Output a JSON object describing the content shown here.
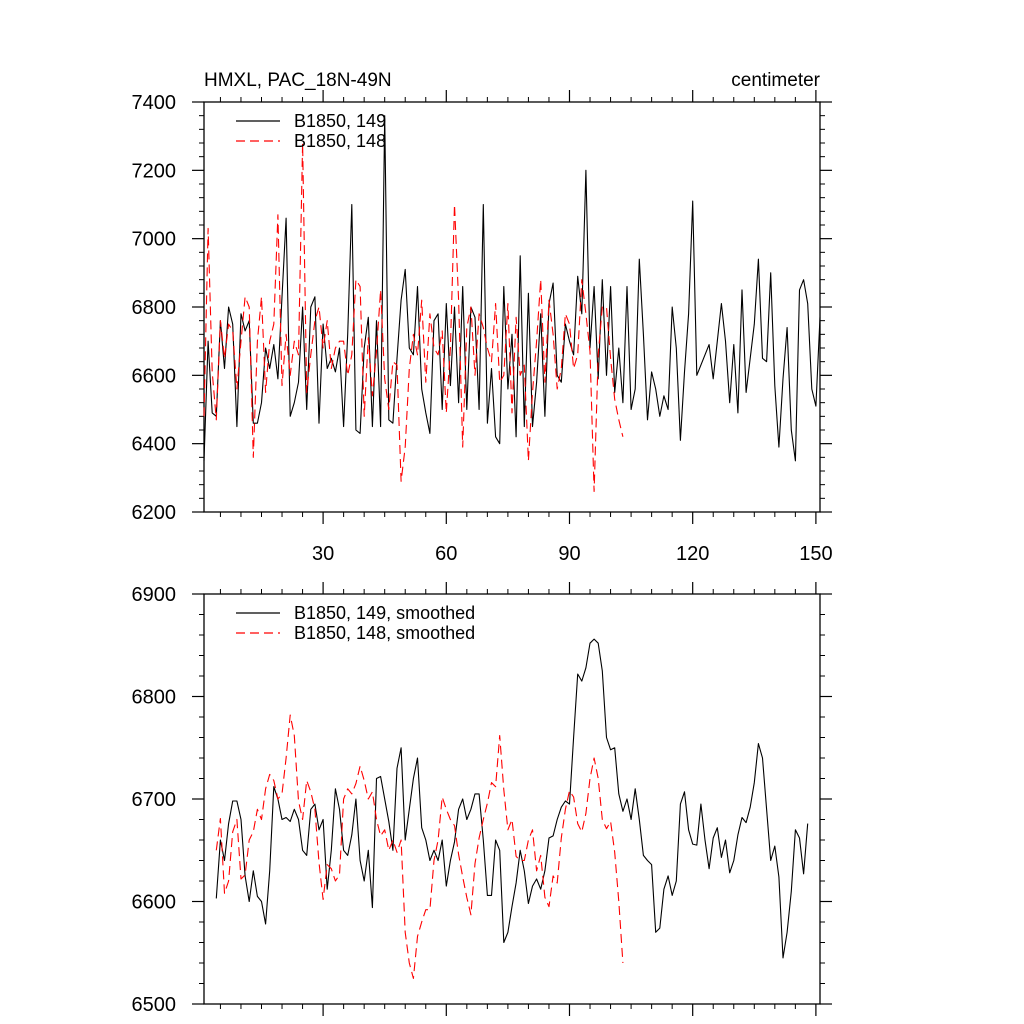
{
  "chart_data": [
    {
      "type": "line",
      "title_left": "HMXL, PAC_18N-49N",
      "title_right": "centimeter",
      "xlim": [
        1,
        151
      ],
      "ylim": [
        6200,
        7400
      ],
      "xticks": [
        30,
        60,
        90,
        120,
        150
      ],
      "yticks": [
        6200,
        6400,
        6600,
        6800,
        7000,
        7200,
        7400
      ],
      "legend_position": "top-left",
      "series": [
        {
          "name": "B1850, 149",
          "color": "#000000",
          "dash": "solid",
          "x_start": 1,
          "values": [
            6350,
            6700,
            6490,
            6480,
            6760,
            6620,
            6800,
            6750,
            6450,
            6780,
            6730,
            6760,
            6460,
            6460,
            6520,
            6680,
            6620,
            6690,
            6590,
            6830,
            7060,
            6480,
            6520,
            6580,
            6800,
            6500,
            6800,
            6830,
            6460,
            6750,
            6620,
            6650,
            6610,
            6680,
            6450,
            6720,
            7100,
            6440,
            6430,
            6680,
            6770,
            6450,
            6760,
            6450,
            7360,
            6470,
            6460,
            6650,
            6820,
            6910,
            6680,
            6660,
            6860,
            6560,
            6490,
            6430,
            6760,
            6780,
            6500,
            6810,
            6570,
            6800,
            6520,
            6860,
            6500,
            6800,
            6770,
            6500,
            7100,
            6460,
            6620,
            6420,
            6400,
            6860,
            6560,
            6720,
            6420,
            6950,
            6450,
            6840,
            6450,
            6580,
            6780,
            6480,
            6810,
            6870,
            6600,
            6580,
            6750,
            6700,
            6660,
            6890,
            6780,
            7200,
            6680,
            6860,
            6590,
            6880,
            6600,
            6860,
            6550,
            6680,
            6520,
            6860,
            6500,
            6560,
            6940,
            6720,
            6470,
            6610,
            6560,
            6480,
            6540,
            6500,
            6800,
            6680,
            6410,
            6610,
            6780,
            7110,
            6600,
            6630,
            6660,
            6690,
            6590,
            6700,
            6810,
            6700,
            6520,
            6690,
            6490,
            6850,
            6550,
            6650,
            6750,
            6940,
            6650,
            6640,
            6900,
            6570,
            6390,
            6590,
            6740,
            6440,
            6350,
            6850,
            6880,
            6810,
            6560,
            6510,
            6770
          ]
        },
        {
          "name": "B1850, 148",
          "color": "#ff0000",
          "dash": "dashed",
          "x_start": 1,
          "values": [
            6480,
            7030,
            6610,
            6470,
            6760,
            6650,
            6750,
            6730,
            6560,
            6700,
            6830,
            6800,
            6360,
            6700,
            6830,
            6550,
            6700,
            6750,
            7070,
            6570,
            6720,
            6600,
            6700,
            6660,
            7280,
            6550,
            6660,
            6760,
            6800,
            6680,
            6760,
            6620,
            6680,
            6700,
            6700,
            6600,
            6660,
            6880,
            6860,
            6480,
            6710,
            6540,
            6670,
            6850,
            6590,
            6500,
            6640,
            6630,
            6290,
            6390,
            6620,
            6720,
            6660,
            6820,
            6580,
            6780,
            6680,
            6660,
            6730,
            6490,
            6680,
            7100,
            6820,
            6390,
            6740,
            6800,
            6600,
            6780,
            6740,
            6680,
            6640,
            6810,
            6580,
            6600,
            6810,
            6490,
            6770,
            6600,
            6630,
            6350,
            6550,
            6700,
            6880,
            6580,
            6820,
            6720,
            6560,
            6620,
            6780,
            6750,
            6620,
            6660,
            6880,
            6780,
            6670,
            6260,
            6660,
            6800,
            6800,
            6650,
            6530,
            6470,
            6420
          ]
        }
      ]
    },
    {
      "type": "line",
      "xlim": [
        1,
        151
      ],
      "ylim": [
        6500,
        6900
      ],
      "xticks": [
        30,
        60,
        90,
        120,
        150
      ],
      "yticks": [
        6500,
        6600,
        6700,
        6800,
        6900
      ],
      "legend_position": "top-left",
      "series": [
        {
          "name": "B1850, 149, smoothed",
          "color": "#000000",
          "dash": "solid",
          "x_start": 4,
          "values": [
            6603,
            6660,
            6640,
            6676,
            6698,
            6698,
            6680,
            6625,
            6600,
            6630,
            6605,
            6600,
            6578,
            6630,
            6712,
            6700,
            6680,
            6682,
            6678,
            6690,
            6680,
            6650,
            6645,
            6690,
            6695,
            6670,
            6680,
            6612,
            6650,
            6710,
            6690,
            6650,
            6645,
            6665,
            6700,
            6640,
            6620,
            6650,
            6594,
            6720,
            6722,
            6700,
            6678,
            6650,
            6730,
            6750,
            6660,
            6690,
            6720,
            6740,
            6672,
            6660,
            6640,
            6650,
            6640,
            6660,
            6615,
            6640,
            6658,
            6690,
            6700,
            6680,
            6690,
            6705,
            6705,
            6660,
            6606,
            6606,
            6660,
            6650,
            6560,
            6570,
            6595,
            6618,
            6650,
            6630,
            6598,
            6615,
            6622,
            6612,
            6630,
            6662,
            6664,
            6680,
            6692,
            6698,
            6695,
            6760,
            6822,
            6815,
            6828,
            6852,
            6856,
            6852,
            6825,
            6760,
            6748,
            6750,
            6705,
            6688,
            6700,
            6680,
            6710,
            6680,
            6645,
            6640,
            6636,
            6570,
            6574,
            6612,
            6625,
            6606,
            6620,
            6695,
            6707,
            6670,
            6656,
            6655,
            6695,
            6660,
            6632,
            6662,
            6672,
            6643,
            6660,
            6628,
            6640,
            6665,
            6682,
            6677,
            6692,
            6716,
            6754,
            6740,
            6690,
            6640,
            6654,
            6624,
            6545,
            6570,
            6610,
            6670,
            6662,
            6627,
            6676
          ]
        },
        {
          "name": "B1850, 148, smoothed",
          "color": "#ff0000",
          "dash": "dashed",
          "x_start": 4,
          "values": [
            6650,
            6681,
            6608,
            6620,
            6668,
            6680,
            6622,
            6626,
            6660,
            6668,
            6690,
            6680,
            6710,
            6724,
            6718,
            6700,
            6705,
            6740,
            6782,
            6762,
            6698,
            6680,
            6718,
            6707,
            6690,
            6638,
            6602,
            6636,
            6632,
            6620,
            6626,
            6700,
            6710,
            6705,
            6715,
            6732,
            6718,
            6700,
            6707,
            6680,
            6664,
            6670,
            6650,
            6660,
            6648,
            6660,
            6570,
            6540,
            6525,
            6566,
            6580,
            6592,
            6592,
            6640,
            6660,
            6702,
            6690,
            6680,
            6674,
            6646,
            6624,
            6604,
            6587,
            6637,
            6662,
            6680,
            6696,
            6716,
            6712,
            6762,
            6709,
            6670,
            6680,
            6644,
            6640,
            6640,
            6660,
            6670,
            6630,
            6645,
            6604,
            6595,
            6625,
            6618,
            6662,
            6690,
            6708,
            6702,
            6676,
            6668,
            6686,
            6720,
            6740,
            6720,
            6680,
            6671,
            6678,
            6648,
            6600,
            6540
          ]
        }
      ]
    }
  ]
}
